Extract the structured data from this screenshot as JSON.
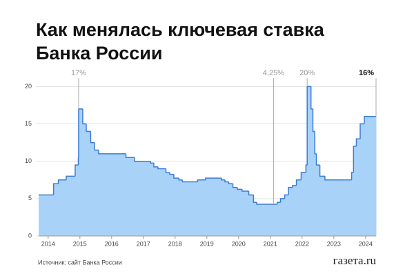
{
  "chart_data": {
    "type": "step-area",
    "title": "Как менялась ключевая ставка Банка России",
    "source": "Источник: сайт Банка России",
    "brand": "газета.ru",
    "x": [
      2013.7,
      2014.17,
      2014.32,
      2014.57,
      2014.85,
      2014.95,
      2014.96,
      2015.09,
      2015.2,
      2015.34,
      2015.46,
      2015.59,
      2016.45,
      2016.72,
      2017.23,
      2017.33,
      2017.46,
      2017.71,
      2017.83,
      2017.96,
      2018.12,
      2018.23,
      2018.71,
      2018.96,
      2019.46,
      2019.57,
      2019.69,
      2019.82,
      2019.96,
      2020.11,
      2020.32,
      2020.47,
      2020.57,
      2021.22,
      2021.32,
      2021.45,
      2021.57,
      2021.7,
      2021.82,
      2021.97,
      2022.12,
      2022.16,
      2022.28,
      2022.34,
      2022.4,
      2022.45,
      2022.56,
      2022.72,
      2023.56,
      2023.62,
      2023.71,
      2023.83,
      2023.96
    ],
    "values": [
      5.5,
      7,
      7.5,
      8,
      9.5,
      10.5,
      17,
      15,
      14,
      12.5,
      11.5,
      11,
      10.5,
      10,
      9.75,
      9.25,
      9,
      8.5,
      8.25,
      7.75,
      7.5,
      7.25,
      7.5,
      7.75,
      7.5,
      7.25,
      7,
      6.5,
      6.25,
      6,
      5.5,
      4.5,
      4.25,
      4.5,
      5,
      5.5,
      6.5,
      6.75,
      7.5,
      8.5,
      9.5,
      20,
      17,
      14,
      11,
      9.5,
      8,
      7.5,
      8.5,
      12,
      13,
      15,
      16
    ],
    "line_color": "#3a7bd5",
    "fill_color": "#a9d2f8",
    "xlim": [
      2013.7,
      2024.33
    ],
    "xticks": [
      2014,
      2015,
      2016,
      2017,
      2018,
      2019,
      2020,
      2021,
      2022,
      2023,
      2024
    ],
    "ylim": [
      0,
      20.5
    ],
    "yticks": [
      0,
      5,
      10,
      15,
      20
    ],
    "grid": true,
    "annotations": [
      {
        "text": "17%",
        "x": 2014.96,
        "y": 17,
        "bold": false
      },
      {
        "text": "4,25%",
        "x": 2021.1,
        "y": 4.25,
        "bold": false
      },
      {
        "text": "20%",
        "x": 2022.16,
        "y": 20,
        "bold": false
      },
      {
        "text": "16%",
        "x": 2024.33,
        "y": 16,
        "bold": true
      }
    ]
  }
}
